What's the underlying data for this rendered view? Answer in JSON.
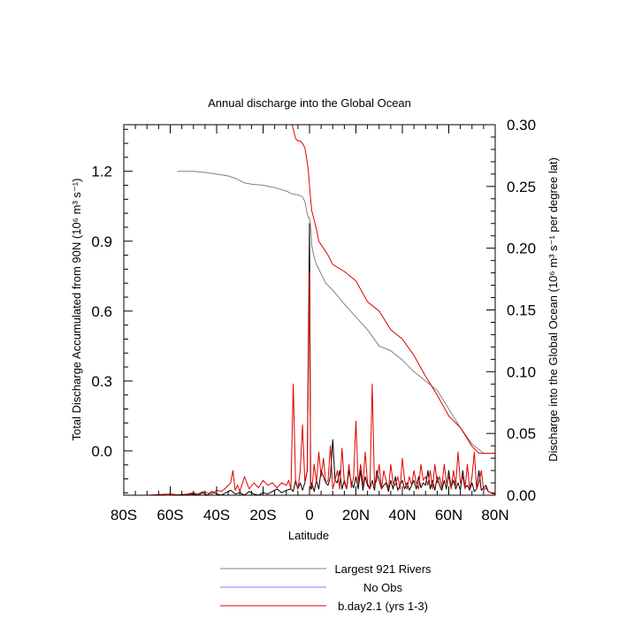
{
  "chart_data": {
    "type": "line",
    "title": "Annual discharge into the Global Ocean",
    "xlabel": "Latitude",
    "ylabel_left": "Total Discharge Accumulated from 90N (10⁶ m³ s⁻¹)",
    "ylabel_right": "Discharge into the Global Ocean (10⁶ m³ s⁻¹ per degree lat)",
    "xlim": [
      -80,
      80
    ],
    "ylim_left": [
      -0.19,
      1.4
    ],
    "ylim_right": [
      0,
      0.3
    ],
    "x_ticks": [
      -80,
      -60,
      -40,
      -20,
      0,
      20,
      40,
      60,
      80
    ],
    "x_tick_labels": [
      "80S",
      "60S",
      "40S",
      "20S",
      "0",
      "20N",
      "40N",
      "60N",
      "80N"
    ],
    "y_left_ticks": [
      0.0,
      0.3,
      0.6,
      0.9,
      1.2
    ],
    "y_left_tick_labels": [
      "0.0",
      "0.3",
      "0.6",
      "0.9",
      "1.2"
    ],
    "y_right_ticks": [
      0,
      0.05,
      0.1,
      0.15,
      0.2,
      0.25,
      0.3
    ],
    "y_right_tick_labels": [
      "0.00",
      "0.05",
      "0.10",
      "0.15",
      "0.20",
      "0.25",
      "0.30"
    ],
    "legend_position": "bottom",
    "series": [
      {
        "name": "Largest 921 Rivers",
        "color": "#808080",
        "axis": "left",
        "x": [
          -57,
          -50,
          -45,
          -42,
          -38,
          -35,
          -32,
          -30,
          -28,
          -25,
          -20,
          -15,
          -10,
          -8,
          -6,
          -5,
          -4,
          -3,
          -2,
          -1,
          -0.5,
          0,
          0.5,
          1,
          2,
          3,
          4,
          5,
          7,
          10,
          15,
          20,
          25,
          30,
          35,
          40,
          45,
          50,
          55,
          60,
          65,
          70,
          75,
          80
        ],
        "y": [
          1.2,
          1.2,
          1.195,
          1.19,
          1.185,
          1.18,
          1.17,
          1.16,
          1.15,
          1.145,
          1.14,
          1.13,
          1.115,
          1.105,
          1.1,
          1.1,
          1.095,
          1.09,
          1.07,
          1.02,
          1.0,
          1.0,
          0.96,
          0.88,
          0.83,
          0.8,
          0.78,
          0.76,
          0.72,
          0.69,
          0.63,
          0.575,
          0.52,
          0.45,
          0.43,
          0.39,
          0.34,
          0.3,
          0.26,
          0.18,
          0.1,
          0.03,
          -0.01,
          -0.01
        ]
      },
      {
        "name": "No Obs",
        "color": "#7777ff",
        "axis": "left",
        "x": [],
        "y": []
      },
      {
        "name": "b.day2.1 (yrs 1-3)",
        "color": "#e00000",
        "axis": "left",
        "x": [
          -7.5,
          -6,
          -5,
          -4,
          -3,
          -2,
          -1,
          -0.5,
          0,
          0.5,
          1,
          2,
          3,
          4,
          6,
          8,
          10,
          15,
          20,
          25,
          30,
          35,
          40,
          45,
          50,
          55,
          60,
          65,
          70,
          73,
          75,
          78,
          80
        ],
        "y": [
          1.4,
          1.34,
          1.33,
          1.33,
          1.32,
          1.3,
          1.24,
          1.2,
          1.14,
          1.08,
          1.03,
          0.99,
          0.95,
          0.9,
          0.87,
          0.84,
          0.8,
          0.77,
          0.73,
          0.64,
          0.6,
          0.52,
          0.48,
          0.41,
          0.32,
          0.24,
          0.15,
          0.1,
          0.02,
          -0.01,
          -0.01,
          -0.01,
          -0.01
        ]
      },
      {
        "name": "Largest 921 Rivers",
        "color": "#000000",
        "axis": "right",
        "x": [
          -80,
          -70,
          -60,
          -50,
          -48,
          -46,
          -44,
          -42,
          -40,
          -38,
          -36,
          -34,
          -32,
          -30,
          -28,
          -26,
          -24,
          -22,
          -20,
          -18,
          -16,
          -14,
          -12,
          -10,
          -8,
          -7,
          -6,
          -5,
          -4,
          -3,
          -2,
          -1,
          0,
          0.5,
          1,
          2,
          3,
          4,
          5,
          6,
          7,
          8,
          9,
          10,
          11,
          12,
          13,
          14,
          15,
          16,
          17,
          18,
          19,
          20,
          21,
          22,
          23,
          24,
          25,
          26,
          27,
          28,
          29,
          30,
          31,
          32,
          33,
          34,
          35,
          36,
          37,
          38,
          39,
          40,
          41,
          42,
          43,
          44,
          45,
          46,
          47,
          48,
          49,
          50,
          51,
          52,
          53,
          54,
          55,
          56,
          57,
          58,
          59,
          60,
          61,
          62,
          63,
          64,
          65,
          66,
          67,
          68,
          69,
          70,
          71,
          72,
          73,
          74,
          75,
          76,
          77,
          78,
          79,
          80
        ],
        "y": [
          0,
          0,
          0,
          0.001,
          0,
          0.002,
          0,
          0.003,
          0.001,
          0,
          0.002,
          0.004,
          0.001,
          0.002,
          0,
          0.003,
          0.001,
          0,
          0.002,
          0.001,
          0.003,
          0.005,
          0.002,
          0.004,
          0.005,
          0.003,
          0.012,
          0.005,
          0.01,
          0.004,
          0.01,
          0.02,
          0.22,
          0.005,
          0.01,
          0.003,
          0.012,
          0.005,
          0.02,
          0.015,
          0.01,
          0.008,
          0.015,
          0.045,
          0.012,
          0.01,
          0.02,
          0.005,
          0.012,
          0.005,
          0.02,
          0.01,
          0.006,
          0.015,
          0.005,
          0.02,
          0.004,
          0.015,
          0.008,
          0.005,
          0.012,
          0.004,
          0.02,
          0.012,
          0.005,
          0.008,
          0.01,
          0.003,
          0.012,
          0.005,
          0.015,
          0.004,
          0.008,
          0.012,
          0.005,
          0.01,
          0.004,
          0.008,
          0.012,
          0.005,
          0.015,
          0.006,
          0.01,
          0.008,
          0.02,
          0.005,
          0.012,
          0.004,
          0.015,
          0.008,
          0.004,
          0.012,
          0.005,
          0.02,
          0.006,
          0.012,
          0.005,
          0.01,
          0.004,
          0.02,
          0.006,
          0.008,
          0.004,
          0.01,
          0.003,
          0.005,
          0.02,
          0.004,
          0.006,
          0.008,
          0.003,
          0.002,
          0.002,
          0.001
        ]
      },
      {
        "name": "b.day2.1 (yrs 1-3)",
        "color": "#e00000",
        "axis": "right",
        "x": [
          -80,
          -70,
          -60,
          -55,
          -50,
          -48,
          -46,
          -44,
          -42,
          -40,
          -38,
          -36,
          -34,
          -33,
          -32,
          -31,
          -30,
          -28,
          -26,
          -24,
          -22,
          -20,
          -18,
          -16,
          -14,
          -12,
          -10,
          -9,
          -8,
          -7,
          -6,
          -5,
          -4,
          -3,
          -2,
          -1,
          0,
          0.5,
          1,
          2,
          3,
          4,
          5,
          6,
          7,
          8,
          9,
          10,
          11,
          12,
          13,
          14,
          15,
          16,
          17,
          18,
          19,
          20,
          21,
          22,
          23,
          24,
          25,
          26,
          27,
          28,
          29,
          30,
          31,
          32,
          33,
          34,
          35,
          36,
          37,
          38,
          39,
          40,
          41,
          42,
          43,
          44,
          45,
          46,
          47,
          48,
          49,
          50,
          51,
          52,
          53,
          54,
          55,
          56,
          57,
          58,
          59,
          60,
          61,
          62,
          63,
          64,
          65,
          66,
          67,
          68,
          69,
          70,
          71,
          72,
          73,
          74,
          75,
          76,
          77,
          78,
          79,
          80
        ],
        "y": [
          0,
          0,
          0.001,
          0,
          0.002,
          0.001,
          0.003,
          0.002,
          0.001,
          0.004,
          0.003,
          0.006,
          0.01,
          0.02,
          0.004,
          0.008,
          0.003,
          0.015,
          0.005,
          0.01,
          0.006,
          0.012,
          0.008,
          0.01,
          0.006,
          0.01,
          0.008,
          0.012,
          0.005,
          0.09,
          0.01,
          0.005,
          0.02,
          0.057,
          0.01,
          0.02,
          0.18,
          0.01,
          0.005,
          0.025,
          0.01,
          0.035,
          0.015,
          0.03,
          0.01,
          0.012,
          0.04,
          0.005,
          0.012,
          0.02,
          0.005,
          0.038,
          0.01,
          0.005,
          0.025,
          0.006,
          0.015,
          0.06,
          0.01,
          0.025,
          0.008,
          0.035,
          0.01,
          0.005,
          0.09,
          0.008,
          0.012,
          0.025,
          0.005,
          0.02,
          0.012,
          0.005,
          0.025,
          0.01,
          0.008,
          0.015,
          0.005,
          0.03,
          0.012,
          0.005,
          0.015,
          0.008,
          0.02,
          0.01,
          0.005,
          0.025,
          0.012,
          0.015,
          0.008,
          0.02,
          0.005,
          0.025,
          0.01,
          0.015,
          0.006,
          0.025,
          0.01,
          0.015,
          0.005,
          0.02,
          0.008,
          0.035,
          0.01,
          0.015,
          0.005,
          0.025,
          0.005,
          0.015,
          0.035,
          0.005,
          0.01,
          0.02,
          0.004,
          0.006,
          0.003,
          0.002,
          0.001,
          0.001
        ]
      }
    ],
    "legend_entries": [
      {
        "label": "Largest 921 Rivers",
        "color": "#808080"
      },
      {
        "label": "No Obs",
        "color": "#7777ff"
      },
      {
        "label": "b.day2.1 (yrs 1-3)",
        "color": "#e00000"
      }
    ]
  }
}
